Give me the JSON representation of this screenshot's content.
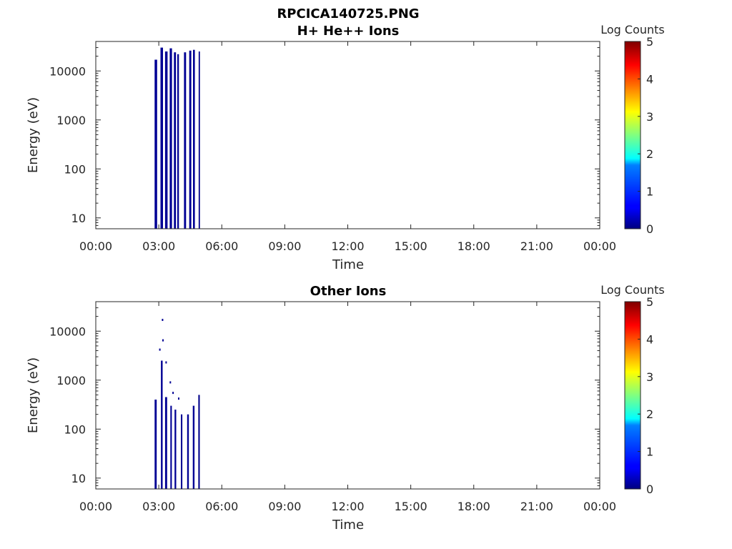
{
  "figure": {
    "title_line1": "RPCICA140725.PNG",
    "panel1_title": "H+ He++ Ions",
    "panel2_title": "Other Ions"
  },
  "chart_data": [
    {
      "type": "heatmap",
      "title": "H+ He++ Ions",
      "xlabel": "Time",
      "ylabel": "Energy (eV)",
      "x_ticks": [
        "00:00",
        "03:00",
        "06:00",
        "09:00",
        "12:00",
        "15:00",
        "18:00",
        "21:00",
        "00:00"
      ],
      "x_range_hours": [
        0,
        24
      ],
      "y_scale": "log",
      "y_ticks": [
        10,
        100,
        1000,
        10000
      ],
      "y_tick_labels": [
        "10",
        "100",
        "1000",
        "10000"
      ],
      "ylim": [
        6,
        40000
      ],
      "colorbar": {
        "label": "Log Counts",
        "range": [
          0,
          5
        ],
        "ticks": [
          "0",
          "1",
          "2",
          "3",
          "4",
          "5"
        ],
        "colormap": "jet"
      },
      "bursts": [
        {
          "t_start": 2.8,
          "t_end": 2.92,
          "e_max": 17000,
          "log_counts": 0.1
        },
        {
          "t_start": 3.08,
          "t_end": 3.2,
          "e_max": 30000,
          "log_counts": 0.1
        },
        {
          "t_start": 3.3,
          "t_end": 3.42,
          "e_max": 25000,
          "log_counts": 0.1
        },
        {
          "t_start": 3.52,
          "t_end": 3.63,
          "e_max": 29000,
          "log_counts": 0.1
        },
        {
          "t_start": 3.72,
          "t_end": 3.82,
          "e_max": 24000,
          "log_counts": 0.1
        },
        {
          "t_start": 3.88,
          "t_end": 3.96,
          "e_max": 22000,
          "log_counts": 0.1
        },
        {
          "t_start": 4.2,
          "t_end": 4.3,
          "e_max": 24000,
          "log_counts": 0.1
        },
        {
          "t_start": 4.45,
          "t_end": 4.55,
          "e_max": 26000,
          "log_counts": 0.1
        },
        {
          "t_start": 4.63,
          "t_end": 4.72,
          "e_max": 27000,
          "log_counts": 0.1
        },
        {
          "t_start": 4.9,
          "t_end": 4.96,
          "e_max": 25000,
          "log_counts": 0.05
        }
      ]
    },
    {
      "type": "heatmap",
      "title": "Other Ions",
      "xlabel": "Time",
      "ylabel": "Energy (eV)",
      "x_ticks": [
        "00:00",
        "03:00",
        "06:00",
        "09:00",
        "12:00",
        "15:00",
        "18:00",
        "21:00",
        "00:00"
      ],
      "x_range_hours": [
        0,
        24
      ],
      "y_scale": "log",
      "y_ticks": [
        10,
        100,
        1000,
        10000
      ],
      "y_tick_labels": [
        "10",
        "100",
        "1000",
        "10000"
      ],
      "ylim": [
        6,
        40000
      ],
      "colorbar": {
        "label": "Log Counts",
        "range": [
          0,
          5
        ],
        "ticks": [
          "0",
          "1",
          "2",
          "3",
          "4",
          "5"
        ],
        "colormap": "jet"
      },
      "bursts": [
        {
          "t_start": 2.8,
          "t_end": 2.9,
          "e_max": 400,
          "log_counts": 0.1
        },
        {
          "t_start": 3.1,
          "t_end": 3.18,
          "e_max": 2500,
          "log_counts": 0.1
        },
        {
          "t_start": 3.3,
          "t_end": 3.4,
          "e_max": 450,
          "log_counts": 0.1
        },
        {
          "t_start": 3.55,
          "t_end": 3.62,
          "e_max": 300,
          "log_counts": 0.1
        },
        {
          "t_start": 3.75,
          "t_end": 3.83,
          "e_max": 250,
          "log_counts": 0.1
        },
        {
          "t_start": 4.05,
          "t_end": 4.12,
          "e_max": 200,
          "log_counts": 0.1
        },
        {
          "t_start": 4.35,
          "t_end": 4.43,
          "e_max": 200,
          "log_counts": 0.1
        },
        {
          "t_start": 4.62,
          "t_end": 4.7,
          "e_max": 300,
          "log_counts": 0.1
        },
        {
          "t_start": 4.88,
          "t_end": 4.95,
          "e_max": 500,
          "log_counts": 0.05
        }
      ],
      "sparse_points": [
        {
          "t": 3.18,
          "e": 17000
        },
        {
          "t": 3.2,
          "e": 6500
        },
        {
          "t": 3.05,
          "e": 4200
        },
        {
          "t": 3.35,
          "e": 2300
        },
        {
          "t": 3.55,
          "e": 900
        },
        {
          "t": 3.68,
          "e": 550
        },
        {
          "t": 3.95,
          "e": 420
        }
      ]
    }
  ]
}
